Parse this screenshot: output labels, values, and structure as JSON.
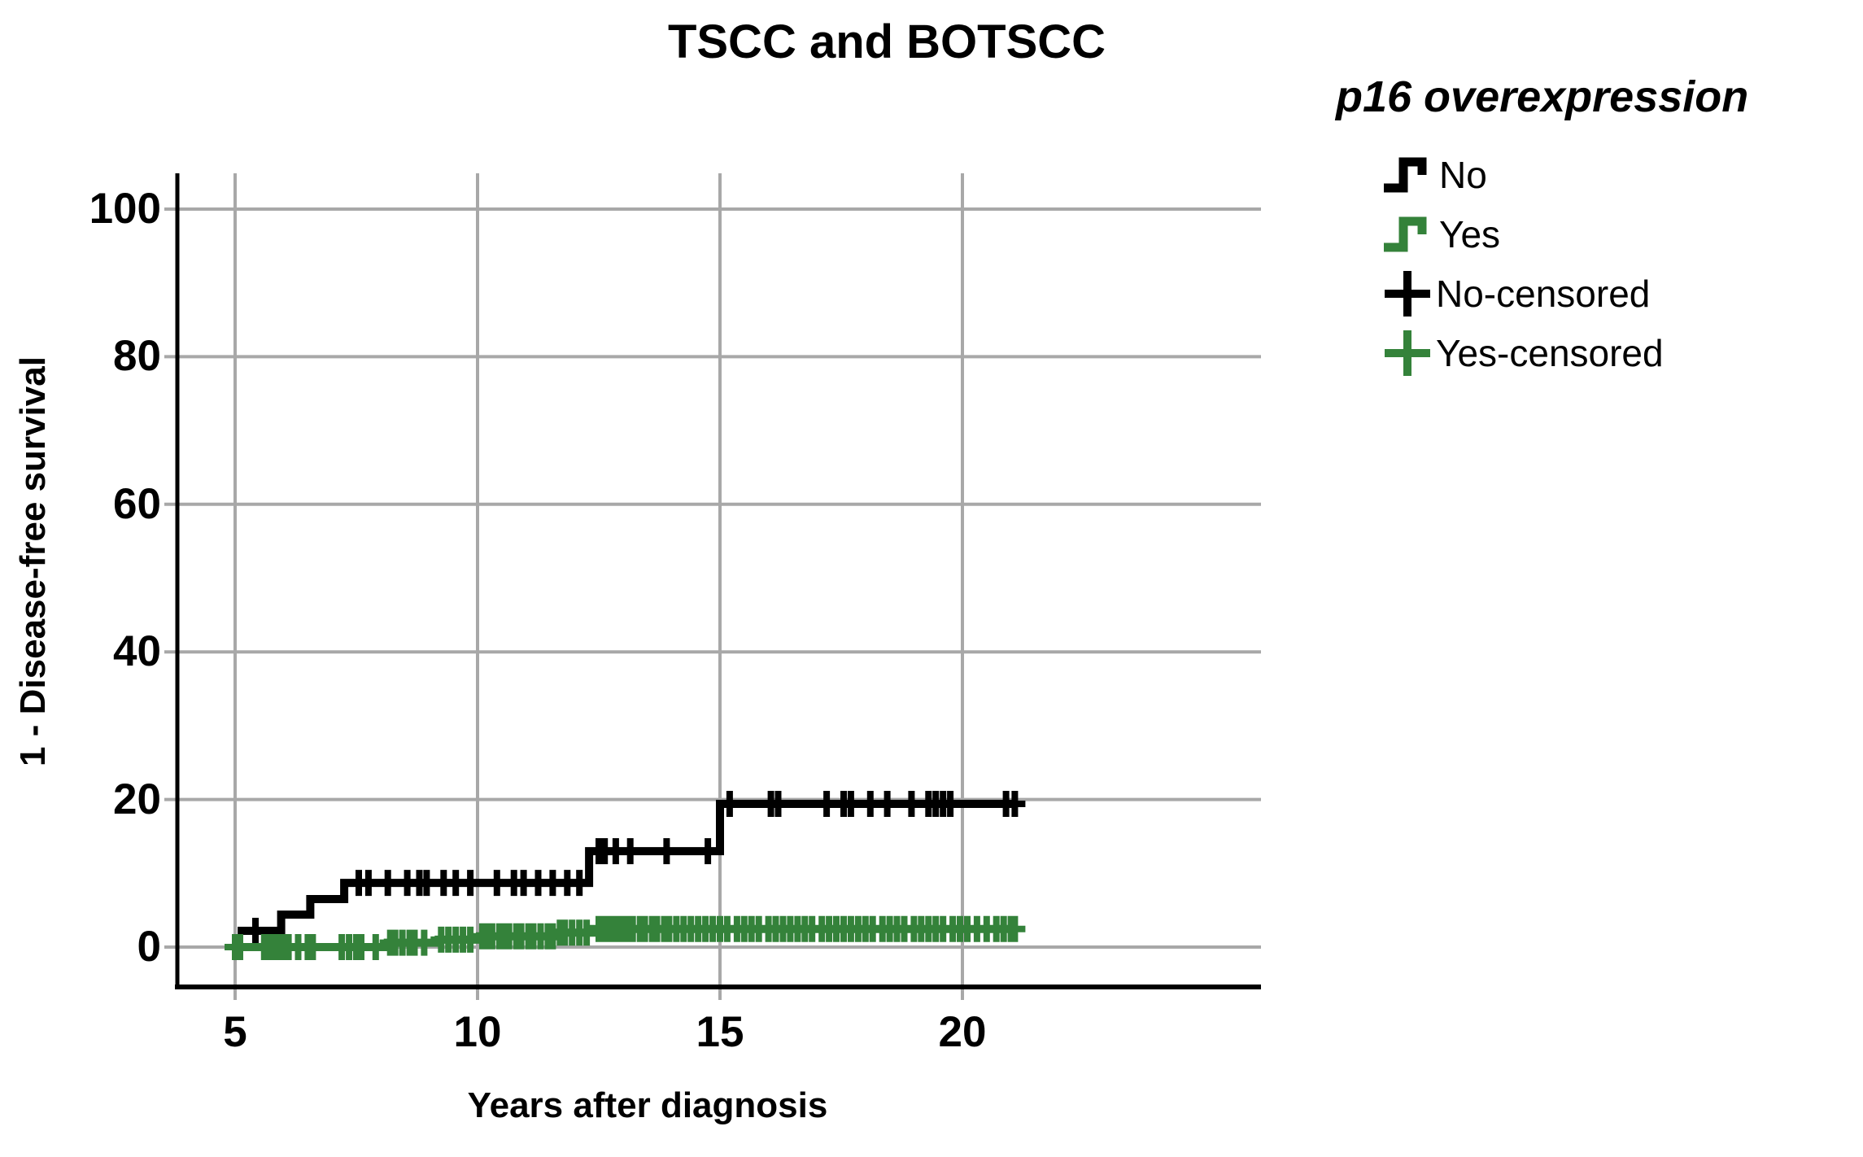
{
  "title": "TSCC and BOTSCC",
  "legend": {
    "title": "p16 overexpression",
    "items": [
      {
        "label": "No",
        "type": "step",
        "color": "#000000"
      },
      {
        "label": "Yes",
        "type": "step",
        "color": "#34823A"
      },
      {
        "label": "No-censored",
        "type": "plus",
        "color": "#000000"
      },
      {
        "label": "Yes-censored",
        "type": "plus",
        "color": "#34823A"
      }
    ]
  },
  "colors": {
    "background": "#FFFFFF",
    "grid": "#A8A8A8",
    "axis": "#000000",
    "series_no": "#000000",
    "series_yes": "#34823A"
  },
  "chart_data": {
    "type": "line",
    "subtype": "kaplan-meier-step",
    "title": "TSCC and BOTSCC",
    "xlabel": "Years after diagnosis",
    "ylabel": "1 - Disease-free survival",
    "x_ticks": [
      5,
      10,
      15,
      20
    ],
    "y_ticks": [
      0,
      20,
      40,
      60,
      80,
      100
    ],
    "xlim": [
      3.8,
      26.2
    ],
    "ylim": [
      -5,
      105
    ],
    "grid": true,
    "legend_position": "right",
    "series": [
      {
        "name": "No",
        "color": "#000000",
        "step_points": [
          [
            5.05,
            2.2
          ],
          [
            5.95,
            2.2
          ],
          [
            5.95,
            4.4
          ],
          [
            6.55,
            4.4
          ],
          [
            6.55,
            6.5
          ],
          [
            7.25,
            6.5
          ],
          [
            7.25,
            8.7
          ],
          [
            12.3,
            8.7
          ],
          [
            12.3,
            13.0
          ],
          [
            15.0,
            13.0
          ],
          [
            15.0,
            19.4
          ],
          [
            21.1,
            19.4
          ]
        ],
        "censor_marks": [
          [
            5.42,
            2.2
          ],
          [
            7.55,
            8.7
          ],
          [
            7.75,
            8.7
          ],
          [
            8.15,
            8.7
          ],
          [
            8.55,
            8.7
          ],
          [
            8.8,
            8.7
          ],
          [
            8.95,
            8.7
          ],
          [
            9.3,
            8.7
          ],
          [
            9.55,
            8.7
          ],
          [
            9.85,
            8.7
          ],
          [
            10.4,
            8.7
          ],
          [
            10.75,
            8.7
          ],
          [
            10.95,
            8.7
          ],
          [
            11.25,
            8.7
          ],
          [
            11.55,
            8.7
          ],
          [
            11.85,
            8.7
          ],
          [
            12.1,
            8.7
          ],
          [
            12.5,
            13.0
          ],
          [
            12.62,
            13.0
          ],
          [
            12.85,
            13.0
          ],
          [
            13.15,
            13.0
          ],
          [
            13.9,
            13.0
          ],
          [
            14.75,
            13.0
          ],
          [
            15.2,
            19.4
          ],
          [
            16.05,
            19.4
          ],
          [
            16.2,
            19.4
          ],
          [
            17.2,
            19.4
          ],
          [
            17.55,
            19.4
          ],
          [
            17.7,
            19.4
          ],
          [
            18.1,
            19.4
          ],
          [
            18.45,
            19.4
          ],
          [
            18.95,
            19.4
          ],
          [
            19.3,
            19.4
          ],
          [
            19.45,
            19.4
          ],
          [
            19.6,
            19.4
          ],
          [
            19.75,
            19.4
          ],
          [
            20.9,
            19.4
          ],
          [
            21.08,
            19.4
          ]
        ]
      },
      {
        "name": "Yes",
        "color": "#34823A",
        "step_points": [
          [
            4.95,
            0.0
          ],
          [
            8.15,
            0.0
          ],
          [
            8.15,
            0.6
          ],
          [
            9.2,
            0.6
          ],
          [
            9.2,
            1.0
          ],
          [
            10.05,
            1.0
          ],
          [
            10.05,
            1.45
          ],
          [
            11.65,
            1.45
          ],
          [
            11.65,
            1.95
          ],
          [
            12.4,
            1.95
          ],
          [
            12.4,
            2.45
          ],
          [
            21.1,
            2.45
          ]
        ],
        "censor_marks": [
          [
            5.0,
            0.0
          ],
          [
            5.1,
            0.0
          ],
          [
            5.6,
            0.0
          ],
          [
            5.7,
            0.0
          ],
          [
            5.8,
            0.0
          ],
          [
            5.9,
            0.0
          ],
          [
            6.0,
            0.0
          ],
          [
            6.1,
            0.0
          ],
          [
            6.3,
            0.0
          ],
          [
            6.5,
            0.0
          ],
          [
            6.6,
            0.0
          ],
          [
            7.2,
            0.0
          ],
          [
            7.35,
            0.0
          ],
          [
            7.5,
            0.0
          ],
          [
            7.6,
            0.0
          ],
          [
            7.9,
            0.0
          ],
          [
            8.2,
            0.6
          ],
          [
            8.3,
            0.6
          ],
          [
            8.45,
            0.6
          ],
          [
            8.6,
            0.6
          ],
          [
            8.7,
            0.6
          ],
          [
            8.9,
            0.6
          ],
          [
            9.25,
            1.0
          ],
          [
            9.4,
            1.0
          ],
          [
            9.55,
            1.0
          ],
          [
            9.7,
            1.0
          ],
          [
            9.85,
            1.0
          ],
          [
            10.1,
            1.45
          ],
          [
            10.2,
            1.45
          ],
          [
            10.3,
            1.45
          ],
          [
            10.45,
            1.45
          ],
          [
            10.55,
            1.45
          ],
          [
            10.65,
            1.45
          ],
          [
            10.8,
            1.45
          ],
          [
            10.9,
            1.45
          ],
          [
            11.05,
            1.45
          ],
          [
            11.15,
            1.45
          ],
          [
            11.3,
            1.45
          ],
          [
            11.45,
            1.45
          ],
          [
            11.55,
            1.45
          ],
          [
            11.7,
            1.95
          ],
          [
            11.8,
            1.95
          ],
          [
            11.95,
            1.95
          ],
          [
            12.1,
            1.95
          ],
          [
            12.25,
            1.95
          ],
          [
            12.5,
            2.45
          ],
          [
            12.6,
            2.45
          ],
          [
            12.7,
            2.45
          ],
          [
            12.8,
            2.45
          ],
          [
            12.9,
            2.45
          ],
          [
            13.0,
            2.45
          ],
          [
            13.1,
            2.45
          ],
          [
            13.2,
            2.45
          ],
          [
            13.35,
            2.45
          ],
          [
            13.45,
            2.45
          ],
          [
            13.6,
            2.45
          ],
          [
            13.7,
            2.45
          ],
          [
            13.85,
            2.45
          ],
          [
            13.95,
            2.45
          ],
          [
            14.1,
            2.45
          ],
          [
            14.25,
            2.45
          ],
          [
            14.4,
            2.45
          ],
          [
            14.55,
            2.45
          ],
          [
            14.7,
            2.45
          ],
          [
            14.85,
            2.45
          ],
          [
            15.0,
            2.45
          ],
          [
            15.15,
            2.45
          ],
          [
            15.35,
            2.45
          ],
          [
            15.5,
            2.45
          ],
          [
            15.65,
            2.45
          ],
          [
            15.8,
            2.45
          ],
          [
            16.0,
            2.45
          ],
          [
            16.15,
            2.45
          ],
          [
            16.3,
            2.45
          ],
          [
            16.45,
            2.45
          ],
          [
            16.6,
            2.45
          ],
          [
            16.75,
            2.45
          ],
          [
            16.9,
            2.45
          ],
          [
            17.1,
            2.45
          ],
          [
            17.25,
            2.45
          ],
          [
            17.4,
            2.45
          ],
          [
            17.55,
            2.45
          ],
          [
            17.7,
            2.45
          ],
          [
            17.85,
            2.45
          ],
          [
            18.0,
            2.45
          ],
          [
            18.15,
            2.45
          ],
          [
            18.35,
            2.45
          ],
          [
            18.5,
            2.45
          ],
          [
            18.65,
            2.45
          ],
          [
            18.8,
            2.45
          ],
          [
            19.0,
            2.45
          ],
          [
            19.15,
            2.45
          ],
          [
            19.3,
            2.45
          ],
          [
            19.45,
            2.45
          ],
          [
            19.6,
            2.45
          ],
          [
            19.8,
            2.45
          ],
          [
            19.95,
            2.45
          ],
          [
            20.1,
            2.45
          ],
          [
            20.3,
            2.45
          ],
          [
            20.5,
            2.45
          ],
          [
            20.7,
            2.45
          ],
          [
            20.85,
            2.45
          ],
          [
            21.0,
            2.45
          ],
          [
            21.08,
            2.45
          ]
        ]
      }
    ]
  }
}
